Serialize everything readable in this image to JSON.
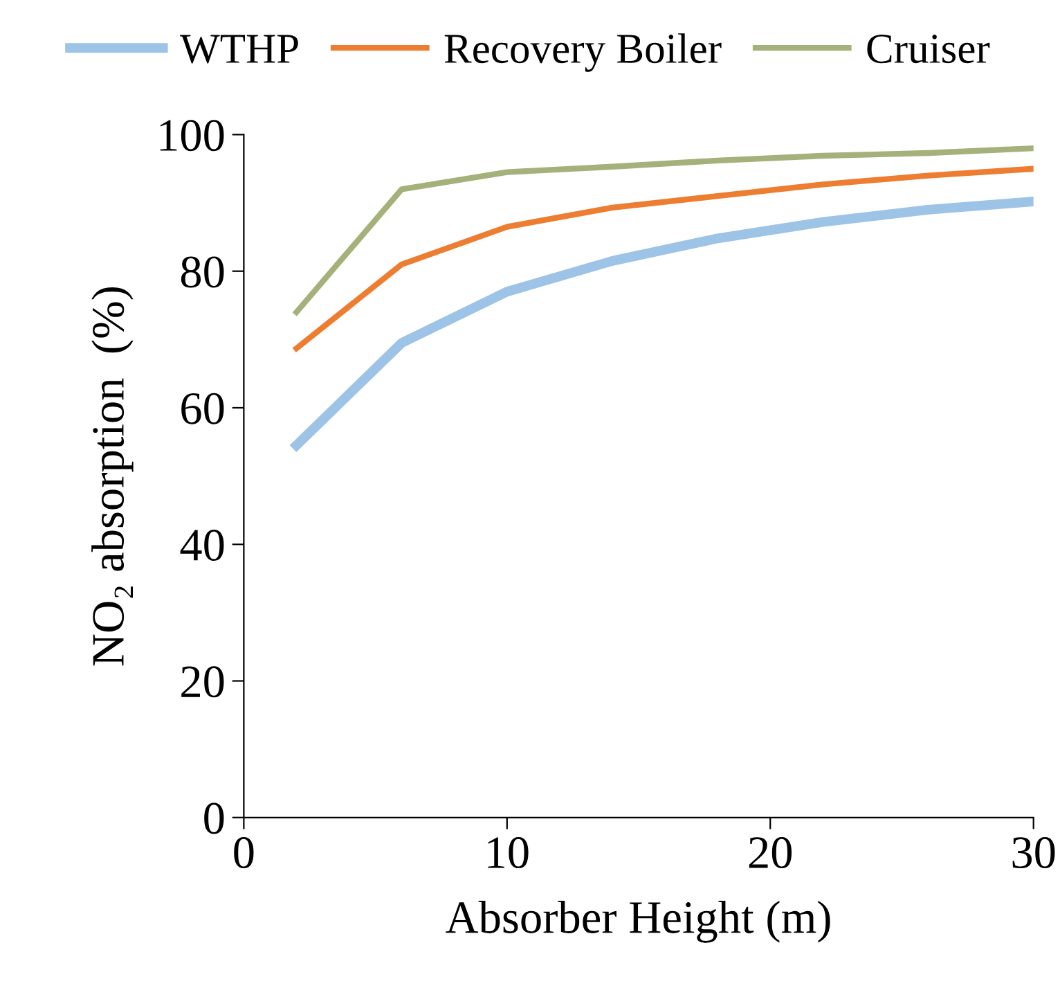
{
  "chart_data": {
    "type": "line",
    "xlabel": "Absorber Height (m)",
    "ylabel": "NO₂ absorption  (%)",
    "x": [
      2,
      6,
      10,
      14,
      18,
      22,
      26,
      30
    ],
    "series": [
      {
        "name": "WTHP",
        "color": "#9dc3e6",
        "values": [
          54.5,
          69.5,
          77,
          81.5,
          84.8,
          87.2,
          89,
          90.2
        ]
      },
      {
        "name": "Recovery Boiler",
        "color": "#ed7d31",
        "values": [
          68.7,
          81,
          86.5,
          89.3,
          91,
          92.7,
          94,
          95
        ]
      },
      {
        "name": "Cruiser",
        "color": "#a5b17a",
        "values": [
          74,
          92,
          94.5,
          95.3,
          96.2,
          96.9,
          97.3,
          98
        ]
      }
    ],
    "xlim": [
      0,
      30
    ],
    "xticks": [
      0,
      10,
      20,
      30
    ],
    "ylim": [
      0,
      100
    ],
    "yticks": [
      0,
      20,
      40,
      60,
      80,
      100
    ],
    "grid": false,
    "legend": "top",
    "marker": "none",
    "line_style": "solid"
  }
}
